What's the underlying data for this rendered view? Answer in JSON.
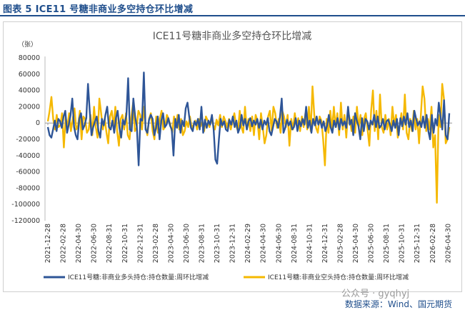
{
  "figure": {
    "label": "图表 5  ICE11 号糖非商业多空持仓环比增减",
    "source": "数据来源：Wind、国元期货",
    "watermark": "公众号 · gyqhyj"
  },
  "colors": {
    "series_long": "#2e5597",
    "series_short": "#f5b800",
    "header": "#1f4e8c",
    "zero_line": "#999999"
  },
  "chart_data": {
    "type": "line",
    "title": "ICE11号糖非商业多空持仓环比增减",
    "unit_label": "（张）",
    "xlabel": "",
    "ylabel": "",
    "ylim": [
      -120000,
      80000
    ],
    "yticks": [
      80000,
      60000,
      40000,
      20000,
      0,
      -20000,
      -40000,
      -60000,
      -80000,
      -100000,
      -120000
    ],
    "xticks": [
      "2021-12-28",
      "2022-02-28",
      "2022-04-30",
      "2022-06-30",
      "2022-08-31",
      "2022-10-31",
      "2022-12-31",
      "2023-02-28",
      "2023-04-30",
      "2023-06-30",
      "2023-08-31",
      "2023-10-31",
      "2023-12-31",
      "2024-02-29",
      "2024-04-30",
      "2024-06-30",
      "2024-08-31",
      "2024-10-31",
      "2024-12-31",
      "2025-02-28",
      "2025-04-30",
      "2025-06-30",
      "2025-08-31",
      "2025-10-31",
      "2025-12-31",
      "2026-02-28",
      "2026-04-30"
    ],
    "grid": false,
    "legend_position": "bottom",
    "series": [
      {
        "name": "ICE11号糖:非商业多头持仓:持仓数量:周环比增减",
        "values": [
          -5000,
          -15000,
          -18000,
          -8000,
          3000,
          -10000,
          5000,
          2000,
          -6000,
          8000,
          15000,
          -12000,
          -2000,
          10000,
          30000,
          -5000,
          -15000,
          -20000,
          5000,
          12000,
          -8000,
          -3000,
          6000,
          48000,
          15000,
          -15000,
          -5000,
          2000,
          8000,
          -10000,
          -18000,
          5000,
          -3000,
          10000,
          20000,
          -5000,
          -8000,
          3000,
          -12000,
          6000,
          15000,
          -6000,
          -18000,
          4000,
          -2000,
          10000,
          55000,
          -8000,
          -10000,
          30000,
          8000,
          -5000,
          -52000,
          5000,
          3000,
          62000,
          -8000,
          -12000,
          4000,
          10000,
          5000,
          -15000,
          -6000,
          8000,
          -20000,
          3000,
          12000,
          -5000,
          -2000,
          6000,
          -3000,
          -8000,
          -40000,
          5000,
          -6000,
          10000,
          -12000,
          3000,
          -4000,
          18000,
          25000,
          8000,
          -6000,
          -10000,
          2000,
          -3000,
          5000,
          -8000,
          20000,
          -12000,
          4000,
          -6000,
          3000,
          -2000,
          10000,
          -8000,
          -45000,
          -50000,
          -20000,
          5000,
          -3000,
          2000,
          -8000,
          -10000,
          4000,
          -2000,
          8000,
          -5000,
          3000,
          -12000,
          -6000,
          10000,
          -3000,
          5000,
          -8000,
          2000,
          6000,
          -4000,
          3000,
          -2000,
          5000,
          -6000,
          4000,
          -8000,
          3000,
          -2000,
          6000,
          -10000,
          -15000,
          -5000,
          5000,
          2000,
          -6000,
          8000,
          30000,
          -12000,
          -6000,
          4000,
          -3000,
          2000,
          -8000,
          -5000,
          6000,
          -10000,
          3000,
          -4000,
          5000,
          -2000,
          20000,
          -6000,
          3000,
          -12000,
          5000,
          -3000,
          8000,
          -2000,
          4000,
          -6000,
          2000,
          -10000,
          -3000,
          10000,
          -5000,
          -12000,
          3000,
          -5000,
          6000,
          -8000,
          5000,
          -3000,
          2000,
          -6000,
          20000,
          -2000,
          4000,
          -15000,
          12000,
          3000,
          -4000,
          -20000,
          6000,
          -10000,
          5000,
          2000,
          -8000,
          3000,
          -2000,
          10000,
          -5000,
          8000,
          -6000,
          -3000,
          5000,
          -8000,
          2000,
          4000,
          -2000,
          -10000,
          3000,
          -6000,
          5000,
          -15000,
          6000,
          -4000,
          8000,
          -2000,
          12000,
          -5000,
          3000,
          -10000,
          15000,
          5000,
          -3000,
          2000,
          -5000,
          8000,
          -6000,
          10000,
          -10000,
          -20000,
          10000,
          -12000,
          5000,
          -3000,
          25000,
          8000,
          -8000,
          28000,
          -15000,
          -20000,
          12000
        ]
      },
      {
        "name": "ICE11号糖:非商业空头持仓:持仓数量:周环比增减",
        "values": [
          2000,
          15000,
          32000,
          5000,
          -8000,
          10000,
          -5000,
          -3000,
          12000,
          -30000,
          8000,
          -5000,
          12000,
          -10000,
          5000,
          18000,
          -8000,
          -3000,
          15000,
          -20000,
          8000,
          5000,
          -12000,
          -8000,
          10000,
          -15000,
          20000,
          -5000,
          -18000,
          30000,
          12000,
          -8000,
          5000,
          -12000,
          -25000,
          8000,
          15000,
          -5000,
          20000,
          -10000,
          -28000,
          5000,
          10000,
          -8000,
          12000,
          -15000,
          -20000,
          8000,
          25000,
          -10000,
          -6000,
          15000,
          10000,
          -8000,
          20000,
          -5000,
          -15000,
          5000,
          12000,
          -10000,
          -20000,
          8000,
          -12000,
          5000,
          15000,
          -8000,
          -5000,
          10000,
          5000,
          -3000,
          -12000,
          8000,
          -5000,
          10000,
          -8000,
          5000,
          -15000,
          -10000,
          2000,
          -5000,
          8000,
          -6000,
          -2000,
          3000,
          -8000,
          5000,
          -4000,
          2000,
          -10000,
          8000,
          3000,
          -5000,
          6000,
          -2000,
          -8000,
          4000,
          -3000,
          10000,
          -5000,
          8000,
          2000,
          -6000,
          5000,
          -8000,
          3000,
          12000,
          -3000,
          -10000,
          15000,
          -5000,
          -12000,
          20000,
          -8000,
          5000,
          -10000,
          8000,
          -15000,
          10000,
          3000,
          -20000,
          12000,
          -5000,
          -25000,
          -15000,
          8000,
          15000,
          -10000,
          20000,
          12000,
          -6000,
          5000,
          -12000,
          15000,
          8000,
          -5000,
          10000,
          -28000,
          5000,
          -8000,
          12000,
          -3000,
          6000,
          -10000,
          8000,
          -5000,
          12000,
          -8000,
          20000,
          -10000,
          45000,
          10000,
          -6000,
          -12000,
          8000,
          3000,
          -20000,
          -52000,
          5000,
          -12000,
          15000,
          -8000,
          20000,
          -5000,
          12000,
          -15000,
          25000,
          -8000,
          10000,
          -18000,
          15000,
          5000,
          -10000,
          8000,
          -12000,
          20000,
          -6000,
          10000,
          -15000,
          5000,
          12000,
          -8000,
          -28000,
          15000,
          40000,
          -10000,
          15000,
          -20000,
          35000,
          -5000,
          -12000,
          10000,
          -8000,
          5000,
          -15000,
          20000,
          -3000,
          10000,
          -18000,
          -5000,
          12000,
          -8000,
          35000,
          -12000,
          -20000,
          5000,
          -10000,
          15000,
          -8000,
          5000,
          -25000,
          10000,
          45000,
          30000,
          -10000,
          5000,
          -8000,
          20000,
          -30000,
          -15000,
          -98000,
          10000,
          -5000,
          48000,
          30000,
          -25000,
          -20000,
          -5000
        ]
      }
    ]
  }
}
